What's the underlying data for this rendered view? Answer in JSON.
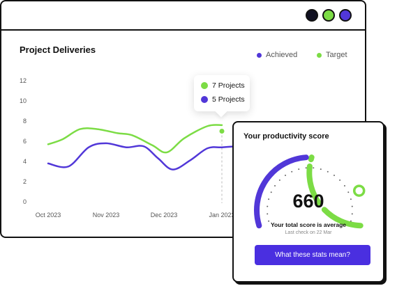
{
  "window": {
    "dots": [
      "#111122",
      "#7cdc45",
      "#5137d8"
    ]
  },
  "chart": {
    "title": "Project Deliveries",
    "legend": [
      {
        "label": "Achieved",
        "color": "#5137d8"
      },
      {
        "label": "Target",
        "color": "#7cdc45"
      }
    ],
    "tooltip": {
      "target_label": "7 Projects",
      "achieved_label": "5 Projects"
    }
  },
  "chart_data": {
    "type": "line",
    "title": "Project Deliveries",
    "x_tick_labels": [
      "Oct 2023",
      "Nov 2023",
      "Dec 2023",
      "Jan 2023"
    ],
    "y_ticks": [
      0,
      2,
      4,
      6,
      8,
      10,
      12
    ],
    "ylim": [
      0,
      12
    ],
    "grid": false,
    "legend_position": "top-right",
    "series": [
      {
        "name": "Target",
        "color": "#7cdc45",
        "points": [
          [
            0,
            5.7
          ],
          [
            0.25,
            6.2
          ],
          [
            0.55,
            7.2
          ],
          [
            0.85,
            7.2
          ],
          [
            1.2,
            6.8
          ],
          [
            1.45,
            6.6
          ],
          [
            1.8,
            5.6
          ],
          [
            2.05,
            4.9
          ],
          [
            2.35,
            6.3
          ],
          [
            2.75,
            7.5
          ],
          [
            3.0,
            7.6
          ]
        ]
      },
      {
        "name": "Achieved",
        "color": "#5137d8",
        "points": [
          [
            0,
            3.8
          ],
          [
            0.35,
            3.5
          ],
          [
            0.7,
            5.4
          ],
          [
            1.0,
            5.8
          ],
          [
            1.35,
            5.4
          ],
          [
            1.65,
            5.5
          ],
          [
            1.9,
            4.3
          ],
          [
            2.15,
            3.2
          ],
          [
            2.45,
            4.1
          ],
          [
            2.75,
            5.3
          ],
          [
            3.0,
            5.4
          ],
          [
            3.25,
            5.5
          ]
        ]
      }
    ],
    "highlight": {
      "x": 3.0,
      "target": 7,
      "achieved": 5
    }
  },
  "score_card": {
    "title": "Your productivity score",
    "score": "660",
    "caption": "Your total score is average",
    "last_check": "Last check on 22 Mar",
    "button_label": "What these stats mean?",
    "gauge": {
      "fraction": 0.82,
      "purple": "#5137d8",
      "green": "#7cdc45"
    }
  }
}
